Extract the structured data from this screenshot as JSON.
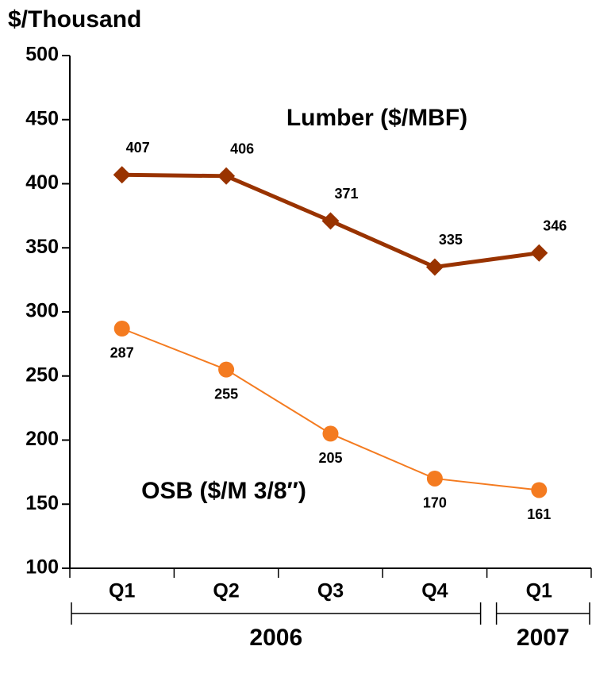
{
  "chart_data": {
    "type": "line",
    "y_label": "$/Thousand",
    "groups": [
      {
        "label": "2006",
        "categories": [
          "Q1",
          "Q2",
          "Q3",
          "Q4"
        ]
      },
      {
        "label": "2007",
        "categories": [
          "Q1"
        ]
      }
    ],
    "series": [
      {
        "name": "Lumber ($/MBF)",
        "color": "#993300",
        "marker": "diamond",
        "values": [
          407,
          406,
          371,
          335,
          346
        ]
      },
      {
        "name": "OSB ($/M 3/8″)",
        "color": "#f47b20",
        "marker": "circle",
        "values": [
          287,
          255,
          205,
          170,
          161
        ]
      }
    ],
    "ylim": [
      100,
      500
    ],
    "yticks": [
      100,
      150,
      200,
      250,
      300,
      350,
      400,
      450,
      500
    ],
    "grid": false
  }
}
